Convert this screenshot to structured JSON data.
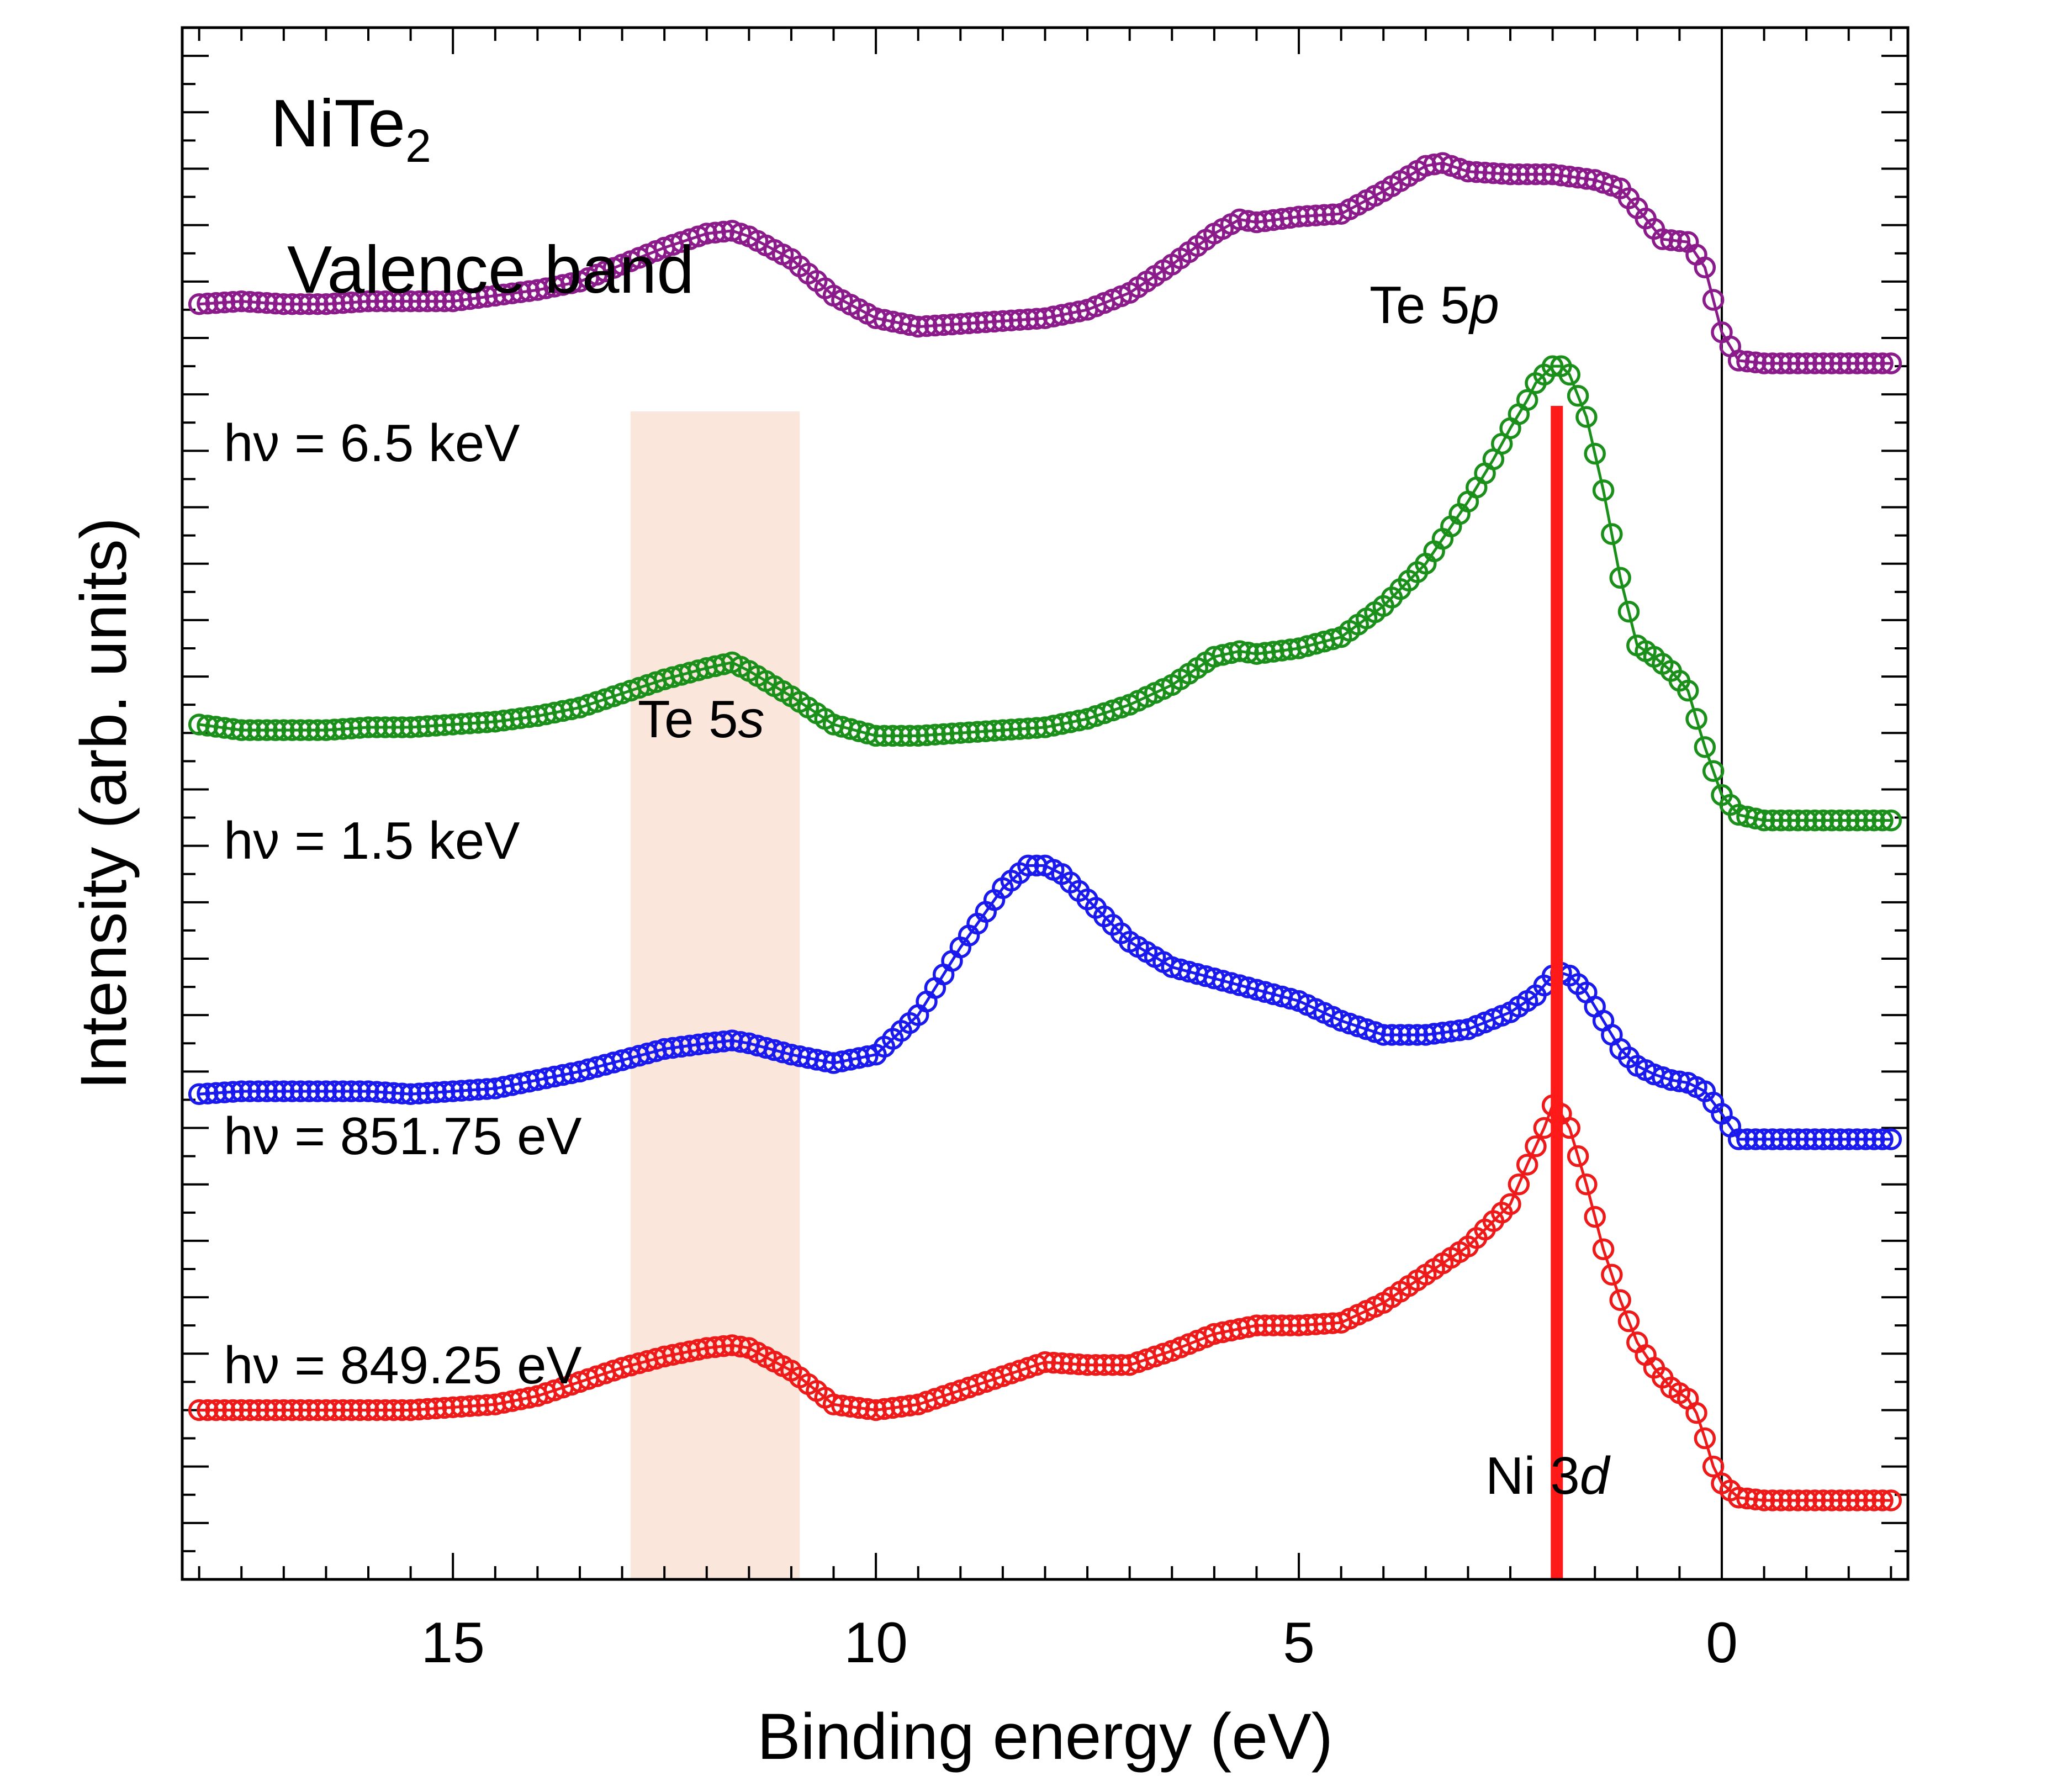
{
  "chart_data": {
    "type": "scatter",
    "title": "NiTe",
    "title_subscript": "2",
    "subtitle": "Valence band",
    "xlabel": "Binding energy (eV)",
    "ylabel": "Intensity (arb. units)",
    "xlim": [
      18.2,
      -2.2
    ],
    "x_reversed": true,
    "x_ticks": [
      15,
      10,
      5,
      0
    ],
    "x_tick_labels": [
      "15",
      "10",
      "5",
      "0"
    ],
    "ylim": [
      0,
      5.5
    ],
    "zero_line_x": 0,
    "te5s_band": {
      "x_range": [
        12.9,
        10.9
      ],
      "label_main": "Te 5",
      "label_italic": "s",
      "color": "#fbe6dc"
    },
    "ni3d_marker": {
      "x": 1.95,
      "label_main": "Ni 3",
      "label_italic": "d",
      "color": "#ff1a1a"
    },
    "te5p_label": {
      "label_main": "Te 5",
      "label_italic": "p"
    },
    "series": [
      {
        "name": "hν = 6.5 keV",
        "color": "#8b1a8b",
        "x": [
          18,
          17.5,
          17,
          16.5,
          16,
          15.5,
          15,
          14.5,
          14,
          13.5,
          13,
          12.5,
          12,
          11.7,
          11.5,
          11,
          10.5,
          10,
          9.5,
          9,
          8.5,
          8,
          7.5,
          7,
          6.5,
          6,
          5.7,
          5.5,
          5,
          4.5,
          4,
          3.5,
          3.3,
          3,
          2.5,
          2,
          1.5,
          1.2,
          1,
          0.7,
          0.4,
          0.2,
          0,
          -0.2,
          -0.5,
          -1,
          -1.5,
          -2
        ],
        "values": [
          4.52,
          4.53,
          4.52,
          4.52,
          4.53,
          4.53,
          4.53,
          4.55,
          4.57,
          4.6,
          4.66,
          4.72,
          4.77,
          4.78,
          4.76,
          4.68,
          4.55,
          4.47,
          4.44,
          4.45,
          4.46,
          4.47,
          4.5,
          4.56,
          4.66,
          4.77,
          4.82,
          4.81,
          4.83,
          4.84,
          4.92,
          5.01,
          5.02,
          4.99,
          4.98,
          4.98,
          4.96,
          4.93,
          4.86,
          4.75,
          4.74,
          4.65,
          4.42,
          4.32,
          4.31,
          4.31,
          4.31,
          4.31
        ]
      },
      {
        "name": "hν = 1.5 keV",
        "color": "#1a8f1a",
        "x": [
          18,
          17.5,
          17,
          16.5,
          16,
          15.5,
          15,
          14.5,
          14,
          13.5,
          13,
          12.5,
          12,
          11.7,
          11.5,
          11,
          10.5,
          10,
          9.5,
          9,
          8.5,
          8,
          7.5,
          7,
          6.5,
          6,
          5.7,
          5.5,
          5,
          4.5,
          4,
          3.5,
          3,
          2.7,
          2.5,
          2.3,
          2.2,
          2,
          1.9,
          1.8,
          1.6,
          1.4,
          1.2,
          1,
          0.8,
          0.6,
          0.4,
          0.2,
          0,
          -0.2,
          -0.5,
          -1,
          -1.5,
          -2
        ],
        "values": [
          3.03,
          3.01,
          3.01,
          3.01,
          3.02,
          3.02,
          3.03,
          3.04,
          3.06,
          3.09,
          3.14,
          3.19,
          3.23,
          3.25,
          3.22,
          3.13,
          3.03,
          2.99,
          2.99,
          3,
          3.01,
          3.02,
          3.05,
          3.1,
          3.17,
          3.27,
          3.29,
          3.28,
          3.3,
          3.34,
          3.45,
          3.6,
          3.82,
          3.97,
          4.08,
          4.18,
          4.24,
          4.3,
          4.3,
          4.27,
          4.12,
          3.86,
          3.55,
          3.31,
          3.27,
          3.22,
          3.15,
          2.95,
          2.78,
          2.71,
          2.69,
          2.69,
          2.69,
          2.69
        ]
      },
      {
        "name": "hν = 851.75 eV",
        "color": "#1a1aee",
        "x": [
          18,
          17.5,
          17,
          16.5,
          16,
          15.5,
          15,
          14.5,
          14,
          13.5,
          13,
          12.5,
          12,
          11.7,
          11.5,
          11,
          10.5,
          10,
          9.5,
          9,
          8.5,
          8.2,
          8,
          7.8,
          7.5,
          7,
          6.5,
          6,
          5.5,
          5,
          4.5,
          4,
          3.5,
          3,
          2.5,
          2.2,
          2,
          1.9,
          1.8,
          1.6,
          1.4,
          1.2,
          1,
          0.8,
          0.6,
          0.4,
          0.2,
          0,
          -0.2,
          -0.5,
          -1,
          -1.5,
          -2
        ],
        "values": [
          1.72,
          1.73,
          1.73,
          1.73,
          1.73,
          1.72,
          1.73,
          1.74,
          1.77,
          1.8,
          1.84,
          1.88,
          1.9,
          1.91,
          1.9,
          1.86,
          1.83,
          1.86,
          2,
          2.24,
          2.45,
          2.53,
          2.53,
          2.5,
          2.41,
          2.26,
          2.17,
          2.13,
          2.09,
          2.05,
          1.98,
          1.93,
          1.93,
          1.95,
          2.01,
          2.07,
          2.14,
          2.15,
          2.14,
          2.08,
          1.98,
          1.88,
          1.82,
          1.79,
          1.77,
          1.76,
          1.73,
          1.65,
          1.56,
          1.56,
          1.56,
          1.56,
          1.56
        ]
      },
      {
        "name": "hν = 849.25 eV",
        "color": "#ee1a1a",
        "x": [
          18,
          17.5,
          17,
          16.5,
          16,
          15.5,
          15,
          14.5,
          14,
          13.5,
          13,
          12.5,
          12,
          11.7,
          11.5,
          11,
          10.5,
          10,
          9.5,
          9,
          8.5,
          8,
          7.5,
          7,
          6.5,
          6,
          5.5,
          5,
          4.5,
          4,
          3.5,
          3,
          2.5,
          2.3,
          2.1,
          2,
          1.9,
          1.8,
          1.6,
          1.4,
          1.2,
          1,
          0.8,
          0.6,
          0.4,
          0.3,
          0.2,
          0.1,
          0,
          -0.2,
          -0.5,
          -1,
          -1.5,
          -2
        ],
        "values": [
          0.6,
          0.6,
          0.6,
          0.6,
          0.6,
          0.6,
          0.61,
          0.62,
          0.65,
          0.7,
          0.75,
          0.79,
          0.82,
          0.83,
          0.82,
          0.74,
          0.62,
          0.6,
          0.62,
          0.67,
          0.72,
          0.77,
          0.76,
          0.76,
          0.81,
          0.87,
          0.9,
          0.9,
          0.91,
          0.98,
          1.08,
          1.18,
          1.33,
          1.47,
          1.6,
          1.68,
          1.65,
          1.6,
          1.4,
          1.17,
          0.99,
          0.84,
          0.75,
          0.68,
          0.64,
          0.59,
          0.5,
          0.4,
          0.34,
          0.29,
          0.28,
          0.28,
          0.28,
          0.28
        ]
      }
    ]
  }
}
